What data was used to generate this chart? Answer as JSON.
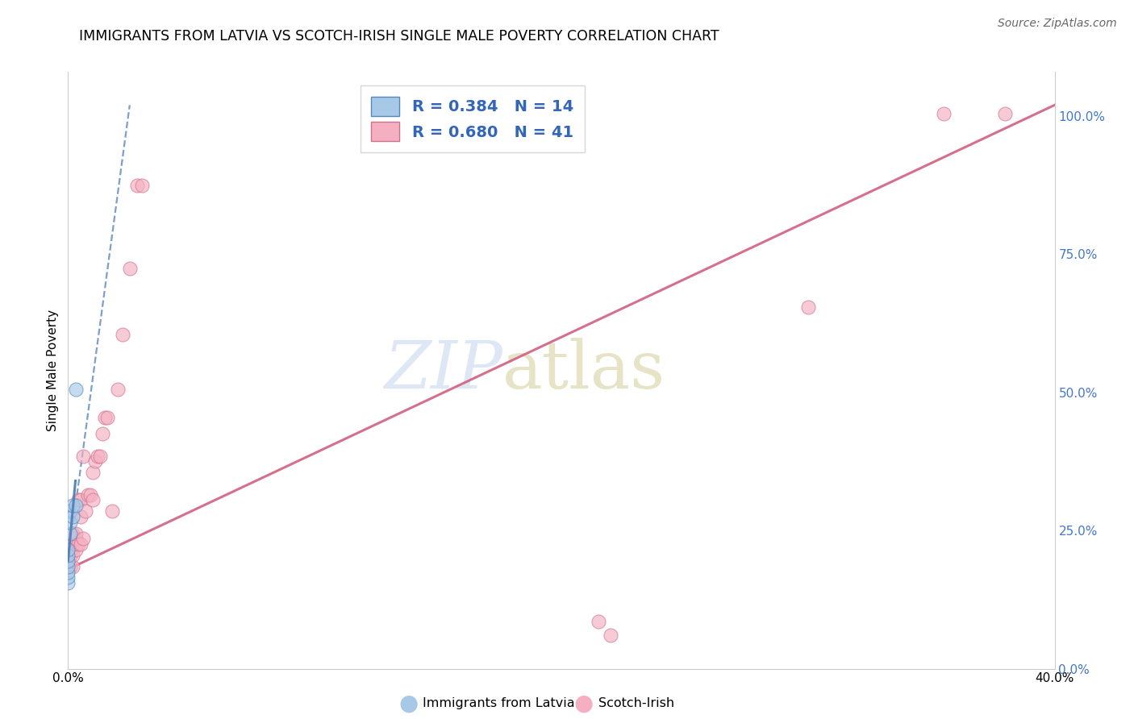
{
  "title": "IMMIGRANTS FROM LATVIA VS SCOTCH-IRISH SINGLE MALE POVERTY CORRELATION CHART",
  "source": "Source: ZipAtlas.com",
  "ylabel": "Single Male Poverty",
  "legend_1_label": "Immigrants from Latvia",
  "legend_2_label": "Scotch-Irish",
  "r1": 0.384,
  "n1": 14,
  "r2": 0.68,
  "n2": 41,
  "blue_face": "#a8c8e8",
  "blue_edge": "#5588bb",
  "blue_line": "#5080b8",
  "pink_face": "#f4b0c0",
  "pink_edge": "#d07090",
  "pink_line": "#d06080",
  "wm_zip_color": "#c8d8f0",
  "wm_atlas_color": "#d0c890",
  "grid_color": "#e0e0e0",
  "right_axis_color": "#4477cc",
  "xlim": [
    0.0,
    0.4
  ],
  "ylim": [
    0.0,
    1.08
  ],
  "blue_x": [
    0.0,
    0.0,
    0.0,
    0.0,
    0.0,
    0.0,
    0.0,
    0.001,
    0.001,
    0.001,
    0.002,
    0.002,
    0.003,
    0.003
  ],
  "blue_y": [
    0.155,
    0.165,
    0.175,
    0.185,
    0.195,
    0.205,
    0.215,
    0.245,
    0.265,
    0.285,
    0.275,
    0.295,
    0.295,
    0.505
  ],
  "pink_x": [
    0.0,
    0.0,
    0.001,
    0.001,
    0.001,
    0.002,
    0.002,
    0.002,
    0.002,
    0.003,
    0.003,
    0.003,
    0.004,
    0.004,
    0.005,
    0.005,
    0.005,
    0.006,
    0.006,
    0.007,
    0.008,
    0.009,
    0.01,
    0.01,
    0.011,
    0.012,
    0.013,
    0.014,
    0.015,
    0.016,
    0.018,
    0.02,
    0.022,
    0.025,
    0.028,
    0.03,
    0.215,
    0.22,
    0.3,
    0.355,
    0.38
  ],
  "pink_y": [
    0.185,
    0.205,
    0.185,
    0.205,
    0.225,
    0.185,
    0.205,
    0.225,
    0.245,
    0.215,
    0.235,
    0.245,
    0.225,
    0.305,
    0.225,
    0.275,
    0.305,
    0.235,
    0.385,
    0.285,
    0.315,
    0.315,
    0.305,
    0.355,
    0.375,
    0.385,
    0.385,
    0.425,
    0.455,
    0.455,
    0.285,
    0.505,
    0.605,
    0.725,
    0.875,
    0.875,
    0.085,
    0.06,
    0.655,
    1.005,
    1.005
  ],
  "pink_line_x0": 0.0,
  "pink_line_y0": 0.18,
  "pink_line_x1": 0.4,
  "pink_line_y1": 1.02,
  "blue_line_x0": 0.0,
  "blue_line_y0": 0.195,
  "blue_line_x1": 0.025,
  "blue_line_y1": 1.02
}
